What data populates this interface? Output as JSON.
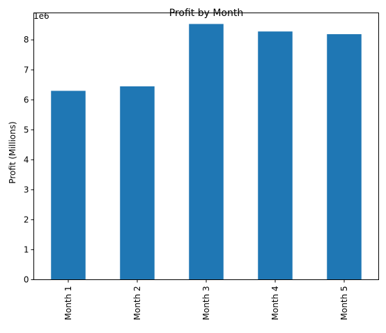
{
  "chart_data": {
    "type": "bar",
    "title": "Profit by Month",
    "xlabel": "",
    "ylabel": "Profit (Millions)",
    "offset_label": "1e6",
    "categories": [
      "Month 1",
      "Month 2",
      "Month 3",
      "Month 4",
      "Month 5"
    ],
    "values": [
      6300000,
      6450000,
      8530000,
      8280000,
      8190000
    ],
    "ylim": [
      0,
      8900000
    ],
    "yticks": [
      0,
      1,
      2,
      3,
      4,
      5,
      6,
      7,
      8
    ],
    "ytick_multiplier": 1000000,
    "grid": false,
    "legend": "none",
    "bar_color": "#1f77b4"
  }
}
